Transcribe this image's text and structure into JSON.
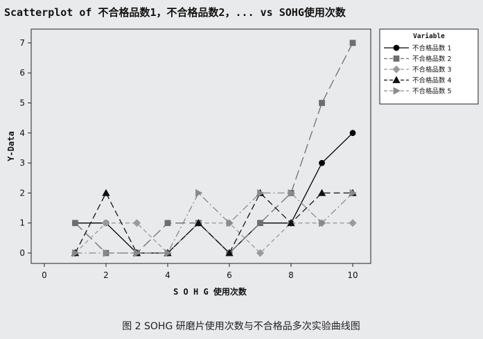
{
  "chart_data": {
    "type": "line",
    "title": "Scatterplot of 不合格品数1，不合格品数2，... vs SOHG使用次数",
    "xlabel": "S O H G 使用次数",
    "ylabel": "Y-Data",
    "xlim": [
      0,
      10.5
    ],
    "ylim": [
      -0.25,
      7.3
    ],
    "xticks": [
      "0",
      "2",
      "4",
      "6",
      "8",
      "10"
    ],
    "yticks": [
      "0",
      "1",
      "2",
      "3",
      "4",
      "5",
      "6",
      "7"
    ],
    "grid": false,
    "legend_title": "Variable",
    "legend_position": "top-right",
    "x": [
      1,
      2,
      3,
      4,
      5,
      6,
      7,
      8,
      9,
      10
    ],
    "series": [
      {
        "name": "不合格品数 1",
        "values": [
          1,
          1,
          0,
          0,
          1,
          0,
          1,
          1,
          3,
          4
        ],
        "color": "#000000",
        "marker": "circle",
        "dash": "solid"
      },
      {
        "name": "不合格品数 2",
        "values": [
          1,
          0,
          0,
          1,
          1,
          0,
          1,
          2,
          5,
          7
        ],
        "color": "#6e6e6e",
        "marker": "square",
        "dash": "long-dash"
      },
      {
        "name": "不合格品数 3",
        "values": [
          0,
          1,
          1,
          0,
          1,
          1,
          0,
          1,
          1,
          1
        ],
        "color": "#9a9a9a",
        "marker": "diamond",
        "dash": "short-dash"
      },
      {
        "name": "不合格品数 4",
        "values": [
          0,
          2,
          0,
          0,
          1,
          0,
          2,
          1,
          2,
          2
        ],
        "color": "#111111",
        "marker": "triangle-up",
        "dash": "dash"
      },
      {
        "name": "不合格品数 5",
        "values": [
          0,
          0,
          0,
          0,
          2,
          1,
          2,
          2,
          1,
          2
        ],
        "color": "#8a8a8a",
        "marker": "triangle-right",
        "dash": "dash-dot"
      }
    ]
  },
  "caption": "图 2   SOHG 研磨片使用次数与不合格品多次实验曲线图"
}
